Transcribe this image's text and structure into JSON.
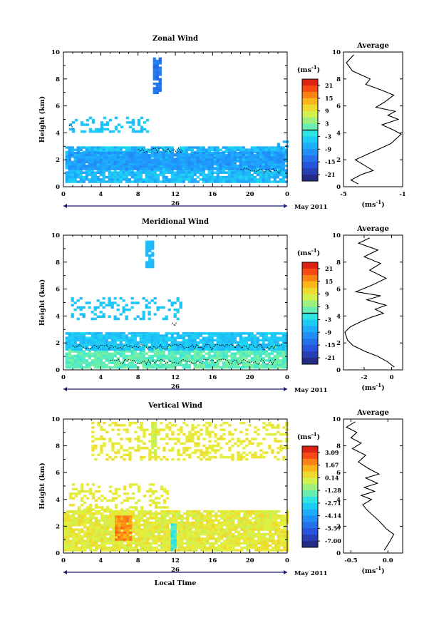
{
  "chart_data": [
    {
      "type": "heatmap",
      "title": "Zonal Wind",
      "ylabel": "Height (km)",
      "ylim": [
        0,
        10
      ],
      "yticks": [
        "0",
        "2",
        "4",
        "6",
        "8",
        "10"
      ],
      "xlim": [
        0,
        24
      ],
      "xticks": [
        "0",
        "4",
        "8",
        "12",
        "16",
        "20",
        "0"
      ],
      "day_label": "26",
      "date_label": "May 2011",
      "colorbar": {
        "unit_prefix": "(ms",
        "unit_exp": "-1",
        "unit_suffix": ")",
        "min": -24,
        "max": 24,
        "ticks": [
          "21",
          "15",
          "9",
          "3",
          "-3",
          "-9",
          "-15",
          "-21"
        ],
        "zero_line": true
      },
      "regions": [
        {
          "x0": 0.2,
          "x1": 23.8,
          "y0": 0.3,
          "y1": 3.0,
          "value": -6,
          "vary": 3
        },
        {
          "x0": 0.5,
          "x1": 23.5,
          "y0": 1.4,
          "y1": 2.6,
          "value": -9,
          "vary": 2
        },
        {
          "x0": 9.6,
          "x1": 10.4,
          "y0": 7.0,
          "y1": 9.6,
          "value": -13,
          "vary": 2
        },
        {
          "x0": 0.6,
          "x1": 9.0,
          "y0": 4.1,
          "y1": 5.2,
          "value": -5,
          "vary": 1,
          "sparse": true
        },
        {
          "x0": 22.6,
          "x1": 24.0,
          "y0": 2.6,
          "y1": 3.6,
          "value": -7,
          "vary": 2,
          "sparse": true
        }
      ],
      "contours": [
        {
          "y": 2.7,
          "x0": 8.0,
          "x1": 13.0
        },
        {
          "y": 1.2,
          "x0": 19.0,
          "x1": 23.5
        },
        {
          "y": 4.4,
          "x0": 0.6,
          "x1": 1.2
        }
      ],
      "profile": {
        "title": "Average",
        "xlim": [
          -5,
          -1
        ],
        "xticks": [
          "-5",
          "-1"
        ],
        "ylim": [
          0,
          10
        ],
        "xlabel_prefix": "(ms",
        "xlabel_exp": "-1",
        "xlabel_suffix": ")",
        "points": [
          [
            -4.0,
            0.2
          ],
          [
            -4.5,
            0.5
          ],
          [
            -3.8,
            0.9
          ],
          [
            -3.0,
            1.2
          ],
          [
            -3.6,
            1.6
          ],
          [
            -4.2,
            2.0
          ],
          [
            -3.4,
            2.4
          ],
          [
            -2.6,
            2.8
          ],
          [
            -1.8,
            3.2
          ],
          [
            -1.4,
            3.6
          ],
          [
            -1.1,
            3.9
          ],
          [
            -1.6,
            4.2
          ],
          [
            -2.4,
            4.6
          ],
          [
            -1.3,
            5.0
          ],
          [
            -2.0,
            5.3
          ],
          [
            -1.5,
            5.6
          ],
          [
            -2.8,
            5.9
          ],
          [
            -2.2,
            6.3
          ],
          [
            -1.6,
            6.8
          ],
          [
            -2.5,
            7.2
          ],
          [
            -3.5,
            7.6
          ],
          [
            -3.2,
            8.0
          ],
          [
            -4.4,
            8.6
          ],
          [
            -4.8,
            9.2
          ],
          [
            -4.3,
            9.8
          ]
        ]
      }
    },
    {
      "type": "heatmap",
      "title": "Meridional Wind",
      "ylabel": "Height (km)",
      "ylim": [
        0,
        10
      ],
      "yticks": [
        "0",
        "2",
        "4",
        "6",
        "8",
        "10"
      ],
      "xlim": [
        0,
        24
      ],
      "xticks": [
        "0",
        "4",
        "8",
        "12",
        "16",
        "20",
        "0"
      ],
      "day_label": "26",
      "date_label": "May 2011",
      "colorbar": {
        "unit_prefix": "(ms",
        "unit_exp": "-1",
        "unit_suffix": ")",
        "min": -24,
        "max": 24,
        "ticks": [
          "21",
          "15",
          "9",
          "3",
          "-3",
          "-9",
          "-15",
          "-21"
        ],
        "zero_line": true
      },
      "regions": [
        {
          "x0": 0.2,
          "x1": 23.8,
          "y0": 0.2,
          "y1": 1.8,
          "value": 1,
          "vary": 2
        },
        {
          "x0": 0.2,
          "x1": 23.8,
          "y0": 1.5,
          "y1": 2.8,
          "value": -5,
          "vary": 2
        },
        {
          "x0": 8.8,
          "x1": 9.6,
          "y0": 7.6,
          "y1": 9.6,
          "value": -6,
          "vary": 1
        },
        {
          "x0": 0.8,
          "x1": 12.5,
          "y0": 3.8,
          "y1": 5.4,
          "value": -5,
          "vary": 1,
          "sparse": true
        }
      ],
      "contours": [
        {
          "y": 1.7,
          "x0": 1.0,
          "x1": 23.5
        },
        {
          "y": 0.6,
          "x0": 5.0,
          "x1": 23.0
        },
        {
          "y": 3.4,
          "x0": 11.7,
          "x1": 12.2
        }
      ],
      "profile": {
        "title": "Average",
        "xlim": [
          -3.5,
          0.8
        ],
        "xticks": [
          "-2",
          "0"
        ],
        "ylim": [
          0,
          10
        ],
        "xlabel_prefix": "(ms",
        "xlabel_exp": "-1",
        "xlabel_suffix": ")",
        "points": [
          [
            0.2,
            0.2
          ],
          [
            -0.3,
            0.6
          ],
          [
            -1.0,
            1.0
          ],
          [
            -2.0,
            1.4
          ],
          [
            -2.8,
            1.8
          ],
          [
            -3.2,
            2.2
          ],
          [
            -3.4,
            2.8
          ],
          [
            -3.0,
            3.2
          ],
          [
            -2.2,
            3.6
          ],
          [
            -1.5,
            3.9
          ],
          [
            -0.6,
            4.2
          ],
          [
            -1.2,
            4.5
          ],
          [
            -0.4,
            4.8
          ],
          [
            -1.8,
            5.2
          ],
          [
            -0.8,
            5.5
          ],
          [
            -2.6,
            5.8
          ],
          [
            -1.4,
            6.3
          ],
          [
            -0.4,
            6.8
          ],
          [
            -1.6,
            7.4
          ],
          [
            -0.8,
            7.9
          ],
          [
            -2.0,
            8.4
          ],
          [
            -1.0,
            8.9
          ],
          [
            -2.4,
            9.4
          ],
          [
            -1.6,
            9.8
          ]
        ]
      }
    },
    {
      "type": "heatmap",
      "title": "Vertical Wind",
      "ylabel": "Height (km)",
      "xlabel": "Local Time",
      "ylim": [
        0,
        10
      ],
      "yticks": [
        "0",
        "2",
        "4",
        "6",
        "8",
        "10"
      ],
      "xlim": [
        0,
        24
      ],
      "xticks": [
        "0",
        "4",
        "8",
        "12",
        "16",
        "20",
        "0"
      ],
      "day_label": "26",
      "date_label": "May 2011",
      "colorbar": {
        "unit_prefix": "(ms",
        "unit_exp": "-1",
        "unit_suffix": ")",
        "min": -8,
        "max": 4,
        "ticks": [
          "3.09",
          "1.67",
          "0.14",
          "-1.28",
          "-2.71",
          "-4.14",
          "-5.57",
          "-7.00"
        ],
        "zero_line": false
      },
      "regions": [
        {
          "x0": 0.0,
          "x1": 24.0,
          "y0": 0.2,
          "y1": 3.2,
          "value": 0.2,
          "vary": 0.5
        },
        {
          "x0": 5.5,
          "x1": 7.2,
          "y0": 1.0,
          "y1": 2.8,
          "value": 1.9,
          "vary": 0.6
        },
        {
          "x0": 11.5,
          "x1": 12.0,
          "y0": 0.2,
          "y1": 2.2,
          "value": -2.2,
          "vary": 0.5
        },
        {
          "x0": 9.4,
          "x1": 10.0,
          "y0": 7.4,
          "y1": 9.8,
          "value": -0.3,
          "vary": 0.3
        },
        {
          "x0": 0.6,
          "x1": 11.0,
          "y0": 3.0,
          "y1": 5.2,
          "value": 0.2,
          "vary": 0.3,
          "sparse": true
        },
        {
          "x0": 3.0,
          "x1": 24.0,
          "y0": 7.0,
          "y1": 9.8,
          "value": 0.3,
          "vary": 0.3,
          "sparse": true
        }
      ],
      "contours": [],
      "profile": {
        "title": "Average",
        "xlim": [
          -0.6,
          0.2
        ],
        "xticks": [
          "-0.5",
          "0.0"
        ],
        "ylim": [
          0,
          10
        ],
        "xlabel_prefix": "(ms",
        "xlabel_exp": "-1",
        "xlabel_suffix": ")",
        "points": [
          [
            -0.05,
            0.2
          ],
          [
            0.02,
            0.8
          ],
          [
            0.08,
            1.4
          ],
          [
            -0.02,
            1.8
          ],
          [
            -0.12,
            2.4
          ],
          [
            -0.2,
            2.8
          ],
          [
            -0.28,
            3.2
          ],
          [
            -0.34,
            3.6
          ],
          [
            -0.22,
            4.0
          ],
          [
            -0.36,
            4.3
          ],
          [
            -0.18,
            4.6
          ],
          [
            -0.32,
            4.9
          ],
          [
            -0.14,
            5.2
          ],
          [
            -0.3,
            5.6
          ],
          [
            -0.12,
            5.9
          ],
          [
            -0.26,
            6.3
          ],
          [
            -0.4,
            6.8
          ],
          [
            -0.3,
            7.3
          ],
          [
            -0.48,
            7.8
          ],
          [
            -0.36,
            8.2
          ],
          [
            -0.5,
            8.6
          ],
          [
            -0.42,
            9.0
          ],
          [
            -0.56,
            9.4
          ],
          [
            -0.44,
            9.8
          ]
        ]
      }
    }
  ]
}
